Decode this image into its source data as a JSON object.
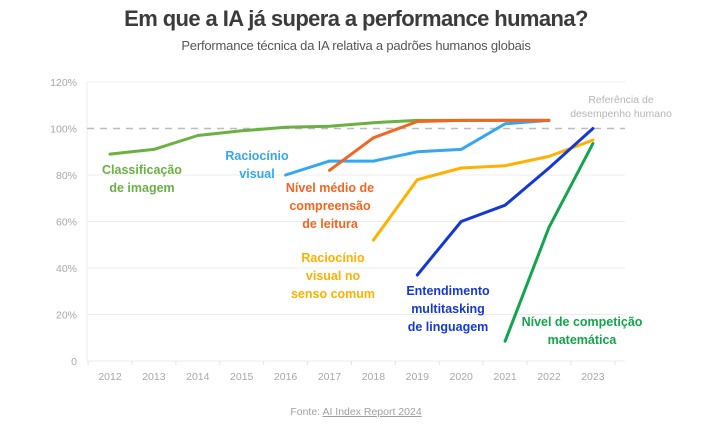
{
  "header": {
    "title": "Em que a IA já supera a performance humana?",
    "subtitle": "Performance técnica da IA relativa a padrões humanos globais"
  },
  "source": {
    "prefix": "Fonte:",
    "link_text": "AI Index Report 2024"
  },
  "chart_data": {
    "type": "line",
    "title": "Em que a IA já supera a performance humana?",
    "subtitle": "Performance técnica da IA relativa a padrões humanos globais",
    "xlabel": "",
    "ylabel": "",
    "x": [
      2012,
      2013,
      2014,
      2015,
      2016,
      2017,
      2018,
      2019,
      2020,
      2021,
      2022,
      2023
    ],
    "ylim": [
      0,
      120
    ],
    "yticks": [
      0,
      20,
      40,
      60,
      80,
      100,
      120
    ],
    "ytick_labels": [
      "0",
      "20%",
      "40%",
      "60%",
      "80%",
      "100%",
      "120%"
    ],
    "xtick_labels": [
      "2012",
      "2013",
      "2014",
      "2015",
      "2016",
      "2017",
      "2018",
      "2019",
      "2020",
      "2021",
      "2022",
      "2023"
    ],
    "grid": true,
    "legend": "none (direct labels)",
    "reference_line": {
      "value": 100,
      "label": [
        "Referência de",
        "desempenho humano"
      ],
      "style": "dashed",
      "color": "#bdbdbd"
    },
    "series": [
      {
        "name": "Classificação de imagem",
        "label_lines": [
          "Classificação",
          "de imagem"
        ],
        "color": "#6ab043",
        "x": [
          2012,
          2013,
          2014,
          2015,
          2016,
          2017,
          2018,
          2019,
          2020,
          2021,
          2022
        ],
        "values": [
          89,
          91,
          97,
          99,
          100.5,
          101,
          102.5,
          103.5,
          103.5,
          103.5,
          103.5
        ]
      },
      {
        "name": "Raciocínio visual",
        "label_lines": [
          "Raciocínio",
          "visual"
        ],
        "color": "#35a7f2",
        "x": [
          2016,
          2017,
          2018,
          2019,
          2020,
          2021,
          2022
        ],
        "values": [
          80,
          86,
          86,
          90,
          91,
          102,
          103.5
        ]
      },
      {
        "name": "Nível médio de compreensão de leitura",
        "label_lines": [
          "Nível médio de",
          "compreensão",
          "de leitura"
        ],
        "color": "#f26522",
        "x": [
          2017,
          2018,
          2019,
          2020,
          2021,
          2022
        ],
        "values": [
          82,
          96,
          103,
          103.5,
          103.5,
          103.5
        ]
      },
      {
        "name": "Raciocínio visual no senso comum",
        "label_lines": [
          "Raciocínio",
          "visual no",
          "senso comum"
        ],
        "color": "#ffb000",
        "x": [
          2018,
          2019,
          2020,
          2021,
          2022,
          2023
        ],
        "values": [
          52,
          78,
          83,
          84,
          88,
          95
        ]
      },
      {
        "name": "Entendimento multitasking de linguagem",
        "label_lines": [
          "Entendimento",
          "multitasking",
          "de linguagem"
        ],
        "color": "#1438d6",
        "x": [
          2019,
          2020,
          2021,
          2022,
          2023
        ],
        "values": [
          37,
          60,
          67,
          83,
          100
        ]
      },
      {
        "name": "Nível de competição matemática",
        "label_lines": [
          "Nível de competição",
          "matemática"
        ],
        "color": "#14a44d",
        "x": [
          2021,
          2022,
          2023
        ],
        "values": [
          8.5,
          57.5,
          93.5
        ]
      }
    ]
  }
}
